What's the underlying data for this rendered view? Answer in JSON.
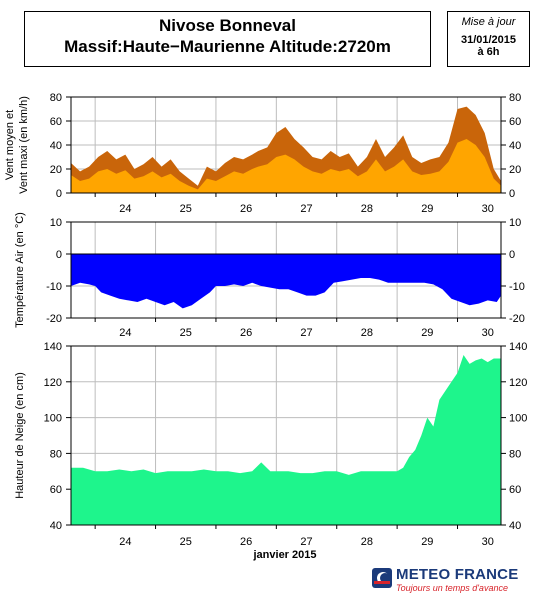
{
  "header": {
    "title_line1": "Nivose Bonneval",
    "title_line2": "Massif:Haute−Maurienne Altitude:2720m",
    "update_label": "Mise à jour",
    "update_date": "31/01/2015",
    "update_time": "à 6h"
  },
  "footer": {
    "month_label": "janvier 2015",
    "logo_name": "METEO FRANCE",
    "logo_slogan": "Toujours un temps d'avance"
  },
  "day_labels": [
    "24",
    "25",
    "26",
    "27",
    "28",
    "29",
    "30"
  ],
  "chart_data": [
    {
      "type": "area",
      "ylabel": [
        "Vent moyen et",
        "Vent maxi (en km/h)"
      ],
      "ylim": [
        0,
        80
      ],
      "yticks": [
        0,
        20,
        40,
        60,
        80
      ],
      "xlim": [
        23.6,
        30.72
      ],
      "grid": true,
      "colors": {
        "max": "#c9650a",
        "mean": "#ffa500"
      },
      "series": [
        {
          "role": "max",
          "x": [
            23.6,
            23.75,
            23.9,
            24.05,
            24.2,
            24.35,
            24.5,
            24.65,
            24.8,
            24.95,
            25.1,
            25.25,
            25.4,
            25.55,
            25.7,
            25.85,
            26.0,
            26.15,
            26.3,
            26.45,
            26.6,
            26.7,
            26.85,
            27.0,
            27.15,
            27.3,
            27.45,
            27.6,
            27.75,
            27.9,
            28.05,
            28.2,
            28.35,
            28.5,
            28.65,
            28.8,
            28.95,
            29.1,
            29.25,
            29.4,
            29.55,
            29.7,
            29.85,
            30.0,
            30.15,
            30.3,
            30.45,
            30.6,
            30.72
          ],
          "y": [
            25,
            18,
            22,
            30,
            35,
            28,
            32,
            20,
            24,
            30,
            22,
            28,
            18,
            12,
            6,
            22,
            18,
            25,
            30,
            28,
            32,
            35,
            38,
            50,
            55,
            45,
            38,
            30,
            28,
            35,
            30,
            33,
            22,
            30,
            45,
            30,
            38,
            48,
            30,
            25,
            28,
            30,
            42,
            70,
            72,
            65,
            50,
            20,
            10
          ]
        },
        {
          "role": "mean",
          "x": [
            23.6,
            23.75,
            23.9,
            24.05,
            24.2,
            24.35,
            24.5,
            24.65,
            24.8,
            24.95,
            25.1,
            25.25,
            25.4,
            25.55,
            25.7,
            25.85,
            26.0,
            26.15,
            26.3,
            26.45,
            26.6,
            26.7,
            26.85,
            27.0,
            27.15,
            27.3,
            27.45,
            27.6,
            27.75,
            27.9,
            28.05,
            28.2,
            28.35,
            28.5,
            28.65,
            28.8,
            28.95,
            29.1,
            29.25,
            29.4,
            29.55,
            29.7,
            29.85,
            30.0,
            30.15,
            30.3,
            30.45,
            30.6,
            30.72
          ],
          "y": [
            15,
            10,
            12,
            18,
            20,
            16,
            19,
            12,
            14,
            18,
            13,
            16,
            10,
            6,
            3,
            12,
            10,
            14,
            18,
            16,
            20,
            22,
            24,
            30,
            32,
            28,
            22,
            18,
            16,
            20,
            18,
            20,
            14,
            18,
            28,
            18,
            22,
            28,
            18,
            15,
            16,
            18,
            26,
            42,
            45,
            40,
            30,
            12,
            6
          ]
        }
      ]
    },
    {
      "type": "area",
      "ylabel": [
        "Température Air (en °C)"
      ],
      "ylim": [
        -20,
        10
      ],
      "yticks": [
        -20,
        -10,
        0,
        10
      ],
      "xlim": [
        23.6,
        30.72
      ],
      "grid": true,
      "colors": {
        "fill": "#0000ff"
      },
      "series": [
        {
          "name": "",
          "x": [
            23.6,
            23.75,
            23.9,
            24.0,
            24.1,
            24.25,
            24.4,
            24.55,
            24.7,
            24.85,
            25.0,
            25.15,
            25.3,
            25.45,
            25.6,
            25.75,
            25.9,
            26.0,
            26.15,
            26.3,
            26.45,
            26.6,
            26.75,
            26.9,
            27.05,
            27.2,
            27.35,
            27.5,
            27.65,
            27.8,
            27.95,
            28.1,
            28.25,
            28.4,
            28.55,
            28.7,
            28.85,
            29.0,
            29.15,
            29.3,
            29.45,
            29.6,
            29.75,
            29.9,
            30.05,
            30.2,
            30.35,
            30.5,
            30.65,
            30.72
          ],
          "y": [
            -10,
            -9,
            -9.5,
            -10,
            -12,
            -13,
            -14,
            -14.5,
            -15,
            -14,
            -15,
            -16,
            -15,
            -17,
            -16,
            -14,
            -12,
            -10,
            -10,
            -9.5,
            -10,
            -9,
            -10,
            -10.5,
            -11,
            -11,
            -12,
            -13,
            -13,
            -12,
            -9,
            -8.5,
            -8,
            -7.5,
            -7.5,
            -8,
            -9,
            -9,
            -9,
            -9,
            -9,
            -9.5,
            -11,
            -14,
            -15,
            -16,
            -15.5,
            -14.5,
            -15,
            -13
          ]
        }
      ]
    },
    {
      "type": "area",
      "ylabel": [
        "Hauteur de Neige (en cm)"
      ],
      "ylim": [
        40,
        140
      ],
      "yticks": [
        40,
        60,
        80,
        100,
        120,
        140
      ],
      "xlim": [
        23.6,
        30.72
      ],
      "grid": true,
      "colors": {
        "fill": "#1ef58c"
      },
      "series": [
        {
          "name": "",
          "x": [
            23.6,
            23.8,
            24.0,
            24.2,
            24.4,
            24.6,
            24.8,
            25.0,
            25.2,
            25.4,
            25.6,
            25.8,
            26.0,
            26.2,
            26.4,
            26.6,
            26.75,
            26.9,
            27.05,
            27.2,
            27.4,
            27.6,
            27.8,
            28.0,
            28.2,
            28.4,
            28.6,
            28.8,
            29.0,
            29.1,
            29.2,
            29.3,
            29.4,
            29.5,
            29.6,
            29.7,
            29.8,
            29.9,
            30.0,
            30.1,
            30.2,
            30.3,
            30.4,
            30.5,
            30.6,
            30.72
          ],
          "y": [
            72,
            72,
            70,
            70,
            71,
            70,
            71,
            69,
            70,
            70,
            70,
            71,
            70,
            70,
            69,
            70,
            75,
            70,
            70,
            70,
            69,
            69,
            70,
            70,
            68,
            70,
            70,
            70,
            70,
            72,
            78,
            82,
            90,
            100,
            95,
            110,
            115,
            120,
            125,
            135,
            130,
            132,
            133,
            131,
            133,
            133
          ]
        }
      ]
    }
  ]
}
